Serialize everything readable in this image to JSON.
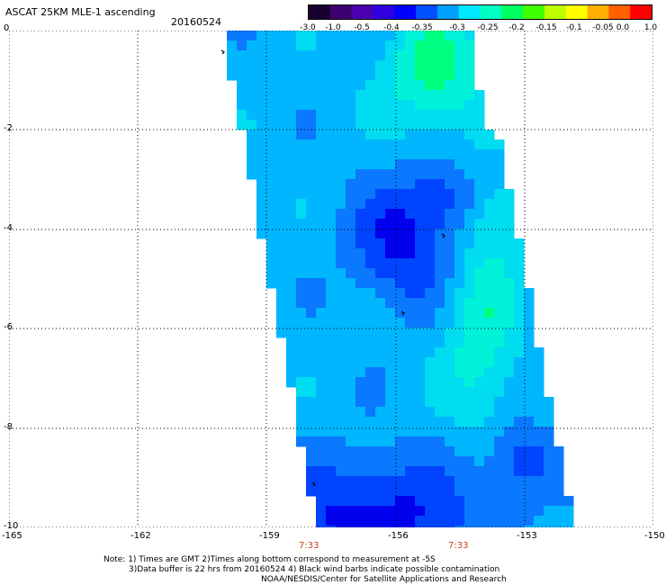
{
  "header": {
    "title": "ASCAT 25KM MLE-1 ascending",
    "date": "20160524"
  },
  "colorbar": {
    "ticks": [
      "-3.0",
      "-1.0",
      "-0.5",
      "-0.4",
      "-0.35",
      "-0.3",
      "-0.25",
      "-0.2",
      "-0.15",
      "-0.1",
      "-0.05",
      "0.0",
      "1.0"
    ],
    "colors": [
      "#1a0030",
      "#3c0070",
      "#4b00b0",
      "#3000e0",
      "#0000ff",
      "#0050ff",
      "#00a0ff",
      "#00e8ff",
      "#00ffc0",
      "#00ff60",
      "#40ff00",
      "#c0ff00",
      "#ffff00",
      "#ffb000",
      "#ff6000",
      "#ff0000"
    ]
  },
  "axes": {
    "y_labels": [
      "0",
      "-2",
      "-4",
      "-6",
      "-8",
      "-10"
    ],
    "x_labels": [
      "-165",
      "-162",
      "-159",
      "-156",
      "-153",
      "-150"
    ],
    "time_labels": [
      "7:33",
      "7:33"
    ]
  },
  "notes": {
    "line1": "Note: 1) Times are GMT 2)Times along bottom correspond to measurement at -5S",
    "line2": "3)Data buffer is 22 hrs from 20160524 4) Black wind barbs indicate possible contamination",
    "line3": "NOAA/NESDIS/Center for Satellite Applications and Research"
  },
  "colors": {
    "gridline": "#000000",
    "time_label": "#c8401a"
  }
}
